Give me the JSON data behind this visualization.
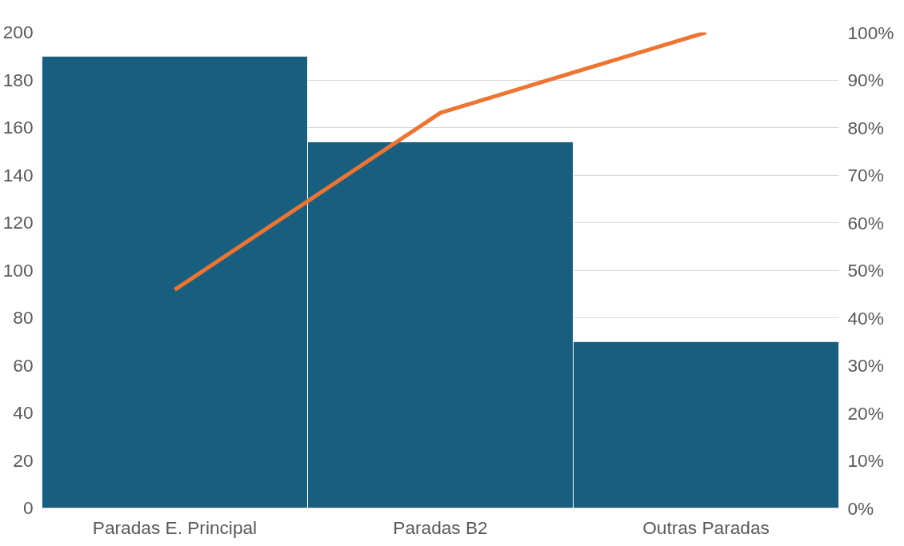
{
  "chart_data": {
    "type": "bar",
    "categories": [
      "Paradas E. Principal",
      "Paradas B2",
      "Outras Paradas"
    ],
    "series": [
      {
        "color": "#175e7f",
        "values": [
          190,
          154,
          70
        ]
      },
      {
        "type": "line",
        "axis": "y2",
        "color": "#ed7431",
        "values": [
          45.9,
          83.1,
          100
        ]
      }
    ],
    "ylim": [
      0,
      200
    ],
    "yticks": [
      0,
      20,
      40,
      60,
      80,
      100,
      120,
      140,
      160,
      180,
      200
    ],
    "y2lim": [
      0,
      100
    ],
    "y2ticks": [
      {
        "value": 0,
        "label": "0%"
      },
      {
        "value": 10,
        "label": "10%"
      },
      {
        "value": 20,
        "label": "20%"
      },
      {
        "value": 30,
        "label": "30%"
      },
      {
        "value": 40,
        "label": "40%"
      },
      {
        "value": 50,
        "label": "50%"
      },
      {
        "value": 60,
        "label": "60%"
      },
      {
        "value": 70,
        "label": "70%"
      },
      {
        "value": 80,
        "label": "80%"
      },
      {
        "value": 90,
        "label": "90%"
      },
      {
        "value": 100,
        "label": "100%"
      }
    ],
    "grid": "y",
    "marker": "none",
    "line_style": "solid"
  }
}
